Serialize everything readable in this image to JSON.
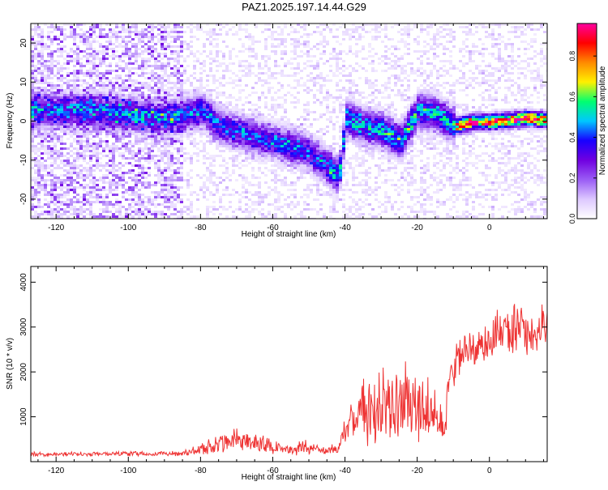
{
  "title": "PAZ1.2025.197.14.44.G29",
  "colors": {
    "line": "#ee3333",
    "colormap": [
      "#ffffff",
      "#ddc8ff",
      "#9a5cf5",
      "#7000e0",
      "#1800ff",
      "#00c8ff",
      "#00ff70",
      "#fff000",
      "#ff8a00",
      "#ff0000",
      "#ff00a0"
    ]
  },
  "chart_data": [
    {
      "type": "heatmap",
      "xlabel": "Height of straight line (km)",
      "ylabel": "Frequency (Hz)",
      "xlim": [
        -127,
        16
      ],
      "ylim": [
        -25,
        25
      ],
      "x_ticks": [
        -120,
        -100,
        -80,
        -60,
        -40,
        -20,
        0
      ],
      "y_ticks": [
        -20,
        -10,
        0,
        10,
        20
      ],
      "ridge": [
        {
          "x": -118,
          "y": 3
        },
        {
          "x": -110,
          "y": 3
        },
        {
          "x": -100,
          "y": 2
        },
        {
          "x": -90,
          "y": 1
        },
        {
          "x": -80,
          "y": 3
        },
        {
          "x": -75,
          "y": -1
        },
        {
          "x": -68,
          "y": -3
        },
        {
          "x": -60,
          "y": -5
        },
        {
          "x": -52,
          "y": -7
        },
        {
          "x": -47,
          "y": -10
        },
        {
          "x": -42,
          "y": -14
        },
        {
          "x": -40,
          "y": 1
        },
        {
          "x": -35,
          "y": -1
        },
        {
          "x": -30,
          "y": -2
        },
        {
          "x": -25,
          "y": -5
        },
        {
          "x": -20,
          "y": 3
        },
        {
          "x": -15,
          "y": 2
        },
        {
          "x": -10,
          "y": -1
        },
        {
          "x": -5,
          "y": 0
        },
        {
          "x": 0,
          "y": 0
        },
        {
          "x": 5,
          "y": 0.5
        },
        {
          "x": 10,
          "y": 1
        },
        {
          "x": 15,
          "y": 0.5
        }
      ],
      "colorbar": {
        "label": "Normalized spectral amplitude",
        "ticks": [
          "0.0",
          "0.2",
          "0.4",
          "0.6",
          "0.8"
        ],
        "range": [
          0,
          0.96
        ]
      }
    },
    {
      "type": "line",
      "xlabel": "Height of straight line (km)",
      "ylabel": "SNR (10 * v/v)",
      "xlim": [
        -127,
        16
      ],
      "ylim": [
        0,
        4350
      ],
      "x_ticks": [
        -120,
        -100,
        -80,
        -60,
        -40,
        -20,
        0
      ],
      "y_ticks": [
        1000,
        2000,
        3000,
        4000
      ],
      "envelope": [
        {
          "x": -127,
          "base": 150,
          "amp": 80
        },
        {
          "x": -85,
          "base": 170,
          "amp": 100
        },
        {
          "x": -80,
          "base": 250,
          "amp": 200
        },
        {
          "x": -75,
          "base": 330,
          "amp": 380
        },
        {
          "x": -68,
          "base": 420,
          "amp": 480
        },
        {
          "x": -62,
          "base": 330,
          "amp": 350
        },
        {
          "x": -57,
          "base": 230,
          "amp": 120
        },
        {
          "x": -52,
          "base": 280,
          "amp": 330
        },
        {
          "x": -46,
          "base": 220,
          "amp": 140
        },
        {
          "x": -42,
          "base": 250,
          "amp": 200
        },
        {
          "x": -39,
          "base": 700,
          "amp": 700
        },
        {
          "x": -34,
          "base": 950,
          "amp": 1300
        },
        {
          "x": -28,
          "base": 1050,
          "amp": 1400
        },
        {
          "x": -23,
          "base": 1150,
          "amp": 1650
        },
        {
          "x": -18,
          "base": 1050,
          "amp": 1350
        },
        {
          "x": -14,
          "base": 900,
          "amp": 850
        },
        {
          "x": -12.5,
          "base": 500,
          "amp": 400
        },
        {
          "x": -11,
          "base": 1700,
          "amp": 900
        },
        {
          "x": -8,
          "base": 2300,
          "amp": 700
        },
        {
          "x": -3,
          "base": 2450,
          "amp": 700
        },
        {
          "x": 2,
          "base": 2700,
          "amp": 800
        },
        {
          "x": 8,
          "base": 2900,
          "amp": 1100
        },
        {
          "x": 12,
          "base": 2700,
          "amp": 900
        },
        {
          "x": 16,
          "base": 2800,
          "amp": 800
        }
      ]
    }
  ]
}
